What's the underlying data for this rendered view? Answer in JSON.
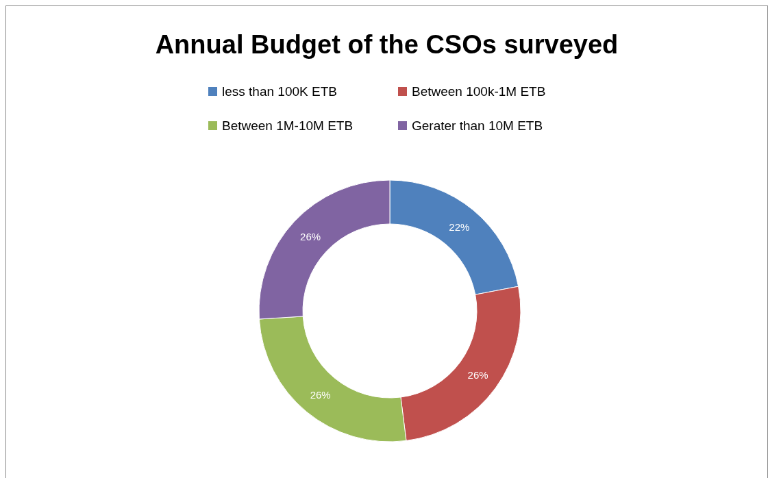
{
  "chart_data": {
    "type": "donut",
    "title": "Annual Budget of the CSOs surveyed",
    "categories": [
      "less than 100K ETB",
      "Between 100k-1M ETB",
      "Between 1M-10M ETB",
      "Gerater than 10M ETB"
    ],
    "values": [
      22,
      26,
      26,
      26
    ],
    "colors": [
      "#4f81bd",
      "#c0504d",
      "#9bbb59",
      "#8064a2"
    ],
    "value_labels": [
      "22%",
      "26%",
      "26%",
      "26%"
    ],
    "legend": "top"
  }
}
